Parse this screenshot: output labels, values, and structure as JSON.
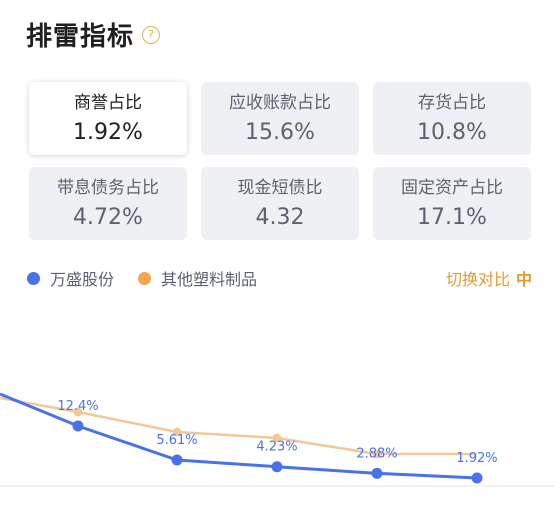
{
  "header": {
    "title": "排雷指标",
    "help_icon": "question-circle-icon",
    "help_glyph": "?"
  },
  "metrics": [
    {
      "label": "商誉占比",
      "value": "1.92%",
      "selected": true
    },
    {
      "label": "应收账款占比",
      "value": "15.6%",
      "selected": false
    },
    {
      "label": "存货占比",
      "value": "10.8%",
      "selected": false
    },
    {
      "label": "带息债务占比",
      "value": "4.72%",
      "selected": false
    },
    {
      "label": "现金短债比",
      "value": "4.32",
      "selected": false
    },
    {
      "label": "固定资产占比",
      "value": "17.1%",
      "selected": false
    }
  ],
  "legend": {
    "company": {
      "label": "万盛股份",
      "color": "#4a72e8"
    },
    "industry": {
      "label": "其他塑料制品",
      "color": "#f3a64d"
    }
  },
  "switch": {
    "label": "切换对比",
    "icon": "switch-icon",
    "glyph": "中"
  },
  "chart_data": {
    "type": "line",
    "series": [
      {
        "name": "万盛股份",
        "color": "#4a72e8",
        "values": [
          null,
          12.4,
          5.61,
          4.23,
          2.88,
          1.92
        ]
      },
      {
        "name": "其他塑料制品",
        "color": "#f3c797",
        "values": [
          null,
          null,
          null,
          null,
          null,
          null
        ]
      }
    ],
    "data_labels": [
      "12.4%",
      "5.61%",
      "4.23%",
      "2.88%",
      "1.92%"
    ],
    "baseline": true
  }
}
